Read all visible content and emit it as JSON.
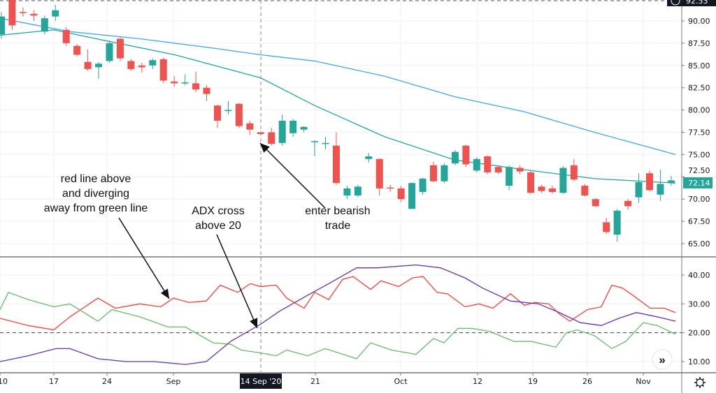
{
  "chart_data": {
    "type": "candlestick",
    "colors": {
      "up": "#26a69a",
      "down": "#ef5350",
      "ma_slow": "#42a5f5",
      "ma_fast": "#26a69a",
      "di_minus": "#f44336",
      "di_plus": "#66bb6a",
      "adx": "#5e35b1"
    },
    "price_pane": {
      "ylim": [
        63.5,
        92.8
      ],
      "y_ticks": [
        "65.00",
        "67.50",
        "70.00",
        "72.50",
        "75.00",
        "77.50",
        "80.00",
        "82.50",
        "85.00",
        "87.50",
        "90.00"
      ],
      "last_price_label": "72.14",
      "top_label": "92.53",
      "candles": [
        [
          88.5,
          91,
          88,
          90.5
        ],
        [
          92.5,
          92.5,
          89,
          89.5
        ],
        [
          91,
          91.5,
          90.5,
          90.9
        ],
        [
          90.8,
          91.2,
          90,
          90.6
        ],
        [
          88.8,
          90.6,
          88.5,
          90.3
        ],
        [
          90.5,
          91.8,
          90,
          91.2
        ],
        [
          89,
          89.3,
          87.2,
          87.5
        ],
        [
          87.2,
          87.4,
          86,
          86.2
        ],
        [
          85.4,
          86.8,
          84.4,
          84.6
        ],
        [
          84.8,
          85.4,
          83.5,
          85.2
        ],
        [
          85.5,
          87.8,
          85.3,
          87.5
        ],
        [
          88,
          88.2,
          85.5,
          85.8
        ],
        [
          85.5,
          85.7,
          84.4,
          84.6
        ],
        [
          85,
          85.3,
          84.2,
          84.8
        ],
        [
          85,
          85.8,
          84.6,
          85.6
        ],
        [
          85.7,
          85.9,
          83,
          83.3
        ],
        [
          83.2,
          83.8,
          82.6,
          83
        ],
        [
          83,
          84,
          82.8,
          83.1
        ],
        [
          83,
          84.3,
          82,
          82.3
        ],
        [
          82.5,
          82.8,
          81,
          81.8
        ],
        [
          80.5,
          80.6,
          78,
          78.8
        ],
        [
          79.9,
          81,
          79.5,
          80
        ],
        [
          80.7,
          80.8,
          78,
          78.2
        ],
        [
          78.5,
          78.8,
          77.2,
          77.8
        ],
        [
          77.5,
          77.6,
          77.1,
          77.3
        ],
        [
          77.5,
          78,
          76,
          76.2
        ],
        [
          76.3,
          79.5,
          76,
          78.8
        ],
        [
          77.4,
          79,
          77,
          78.8
        ],
        [
          77.8,
          78.2,
          77.5,
          78.1
        ],
        [
          76.4,
          76.6,
          74.8,
          76.5
        ],
        [
          76.2,
          77,
          75.6,
          76.3
        ],
        [
          76,
          77.5,
          71.6,
          71.8
        ],
        [
          70.4,
          71.5,
          70,
          71.2
        ],
        [
          70.4,
          71.6,
          70.2,
          71.4
        ],
        [
          74.5,
          75.2,
          74.1,
          74.8
        ],
        [
          74.5,
          74.6,
          70.4,
          71.2
        ],
        [
          71.3,
          71.6,
          70.8,
          71.2
        ],
        [
          71.2,
          71.5,
          69.7,
          70
        ],
        [
          68.9,
          71.9,
          68.9,
          71.8
        ],
        [
          70.8,
          72.4,
          70.5,
          72.3
        ],
        [
          73.8,
          74.2,
          71.9,
          72
        ],
        [
          72,
          74,
          71.8,
          73.8
        ],
        [
          74,
          75.5,
          73.8,
          75.3
        ],
        [
          76,
          76.1,
          73.6,
          73.9
        ],
        [
          73.2,
          74.7,
          73,
          74.5
        ],
        [
          74.8,
          74.9,
          72.8,
          73
        ],
        [
          73.6,
          73.8,
          72.8,
          73
        ],
        [
          71.5,
          73.8,
          71,
          73.6
        ],
        [
          73.5,
          73.8,
          72.8,
          73.1
        ],
        [
          73,
          73.2,
          70.6,
          70.7
        ],
        [
          71.4,
          71.6,
          70.7,
          70.9
        ],
        [
          71.2,
          71.5,
          70.6,
          70.8
        ],
        [
          70.7,
          73.7,
          70.6,
          73.5
        ],
        [
          73.8,
          74.5,
          72,
          72.2
        ],
        [
          71.5,
          71.7,
          70.3,
          70.4
        ],
        [
          70,
          70.1,
          69.1,
          69.2
        ],
        [
          67.4,
          67.9,
          66.1,
          66.3
        ],
        [
          66,
          68.9,
          65.2,
          68.7
        ],
        [
          69.8,
          70,
          68.8,
          69.2
        ],
        [
          70.2,
          72.9,
          69.6,
          71.9
        ],
        [
          72.9,
          73.2,
          70.9,
          71
        ],
        [
          70.5,
          73.3,
          69.8,
          71.7
        ],
        [
          71.8,
          72.6,
          71.5,
          72.1
        ]
      ],
      "ma_slow": [
        [
          0,
          90.3
        ],
        [
          100,
          88.8
        ],
        [
          200,
          88
        ],
        [
          300,
          87
        ],
        [
          373,
          86.2
        ],
        [
          450,
          85.5
        ],
        [
          550,
          83.8
        ],
        [
          650,
          81.5
        ],
        [
          750,
          79.8
        ],
        [
          850,
          77.5
        ],
        [
          966,
          75
        ]
      ],
      "ma_fast": [
        [
          0,
          88.4
        ],
        [
          77,
          89
        ],
        [
          150,
          87.8
        ],
        [
          250,
          86.2
        ],
        [
          373,
          83.6
        ],
        [
          450,
          80.5
        ],
        [
          550,
          77
        ],
        [
          650,
          74.4
        ],
        [
          750,
          73.3
        ],
        [
          850,
          72.3
        ],
        [
          966,
          71.8
        ]
      ]
    },
    "adx_pane": {
      "ylim": [
        6,
        46
      ],
      "y_ticks": [
        "10.00",
        "20.00",
        "30.00",
        "40.00"
      ],
      "threshold": 20,
      "di_minus": [
        25,
        22.5,
        21,
        25.5,
        32,
        28.5,
        30,
        29,
        32,
        30.5,
        31,
        36.5,
        34,
        37,
        36,
        36.5,
        32,
        28.5,
        34,
        31.5,
        38.5,
        39.5,
        35,
        38,
        36,
        39,
        39.5,
        34,
        33.5,
        29,
        30,
        28.5,
        33.5,
        29.5,
        30.5,
        30,
        26.5,
        24,
        28,
        29,
        36.5,
        35.5,
        33,
        28.5,
        28.5,
        27
      ],
      "di_minus_x": [
        0,
        40,
        77,
        100,
        140,
        165,
        200,
        230,
        248,
        270,
        295,
        315,
        340,
        358,
        373,
        395,
        410,
        435,
        450,
        470,
        490,
        505,
        530,
        545,
        570,
        590,
        605,
        625,
        640,
        665,
        685,
        705,
        730,
        750,
        765,
        785,
        800,
        815,
        840,
        860,
        875,
        890,
        905,
        930,
        950,
        966
      ],
      "di_plus": [
        28,
        34,
        31.5,
        29,
        30,
        24,
        28,
        25.5,
        22,
        22,
        16.5,
        16,
        14,
        13,
        12,
        14,
        12,
        14.5,
        11,
        16.5,
        14,
        12.5,
        18,
        16.5,
        21.5,
        21.5,
        20.5,
        17,
        17,
        15,
        20,
        21,
        19,
        14.5,
        17,
        23.5,
        22.5,
        19.5
      ],
      "di_plus_x": [
        0,
        12,
        40,
        77,
        100,
        140,
        160,
        200,
        240,
        265,
        305,
        330,
        345,
        373,
        395,
        410,
        440,
        465,
        510,
        530,
        560,
        595,
        620,
        635,
        655,
        675,
        700,
        735,
        760,
        795,
        810,
        825,
        850,
        875,
        895,
        920,
        940,
        966
      ],
      "adx": [
        10,
        12,
        14.5,
        14.5,
        11,
        10,
        10,
        9,
        10,
        17,
        23,
        27.5,
        33,
        37,
        42.5,
        42.5,
        43.5,
        42.5,
        39,
        35.5,
        31,
        30,
        27,
        23.5,
        22.5,
        25,
        27,
        25.5,
        24
      ],
      "adx_x": [
        0,
        40,
        80,
        100,
        140,
        180,
        220,
        265,
        295,
        330,
        373,
        400,
        440,
        470,
        510,
        540,
        595,
        630,
        665,
        690,
        730,
        770,
        800,
        830,
        860,
        885,
        910,
        940,
        966
      ]
    },
    "x_ticks": [
      "10",
      "17",
      "24",
      "Sep",
      "21",
      "Oct",
      "12",
      "19",
      "26",
      "Nov"
    ],
    "crosshair_label": "14 Sep '20",
    "annotations": [
      {
        "lines": [
          "red line above",
          "and diverging",
          "away from green line"
        ]
      },
      {
        "lines": [
          "ADX cross",
          "above 20"
        ]
      },
      {
        "lines": [
          "enter bearish",
          "trade"
        ]
      }
    ]
  },
  "ui": {
    "scroll_button": "»",
    "settings_icon": "gear-icon"
  }
}
